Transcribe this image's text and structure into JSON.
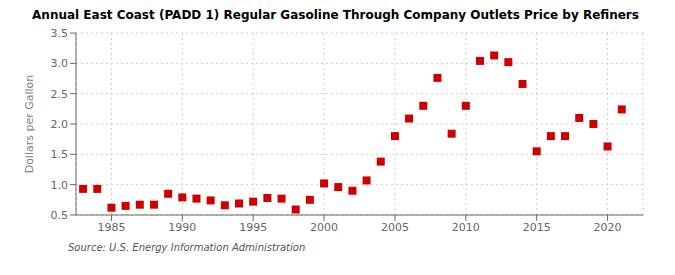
{
  "chart_data": {
    "type": "scatter",
    "title": "Annual East Coast (PADD 1) Regular Gasoline Through Company Outlets Price by Refiners",
    "ylabel": "Dollars per Gallon",
    "annotations": [
      "Source: U.S. Energy Information Administration"
    ],
    "color": "#cc0000",
    "marker": "square",
    "grid": true,
    "xlim": [
      1982.5,
      2022.5
    ],
    "xticks": [
      1985,
      1990,
      1995,
      2000,
      2005,
      2010,
      2015,
      2020
    ],
    "ylim": [
      0.5,
      3.5
    ],
    "yticks": [
      0.5,
      {
        "value": 1,
        "label": "1.0"
      },
      1.5,
      {
        "value": 2,
        "label": "2.0"
      },
      2.5,
      {
        "value": 3,
        "label": "3.0"
      },
      3.5
    ],
    "x": [
      1983,
      1984,
      1985,
      1986,
      1987,
      1988,
      1989,
      1990,
      1991,
      1992,
      1993,
      1994,
      1995,
      1996,
      1997,
      1998,
      1999,
      2000,
      2001,
      2002,
      2003,
      2004,
      2005,
      2006,
      2007,
      2008,
      2009,
      2010,
      2011,
      2012,
      2013,
      2014,
      2015,
      2016,
      2017,
      2018,
      2019,
      2020,
      2021
    ],
    "values": [
      0.93,
      0.93,
      0.62,
      0.65,
      0.67,
      0.67,
      0.85,
      0.79,
      0.77,
      0.74,
      0.66,
      0.69,
      0.72,
      0.78,
      0.77,
      0.59,
      0.75,
      1.02,
      0.96,
      0.9,
      1.07,
      1.38,
      1.8,
      2.09,
      2.3,
      2.76,
      1.84,
      2.3,
      3.04,
      3.13,
      3.02,
      2.66,
      1.55,
      1.8,
      1.8,
      2.1,
      2.0,
      1.63,
      2.24
    ]
  }
}
